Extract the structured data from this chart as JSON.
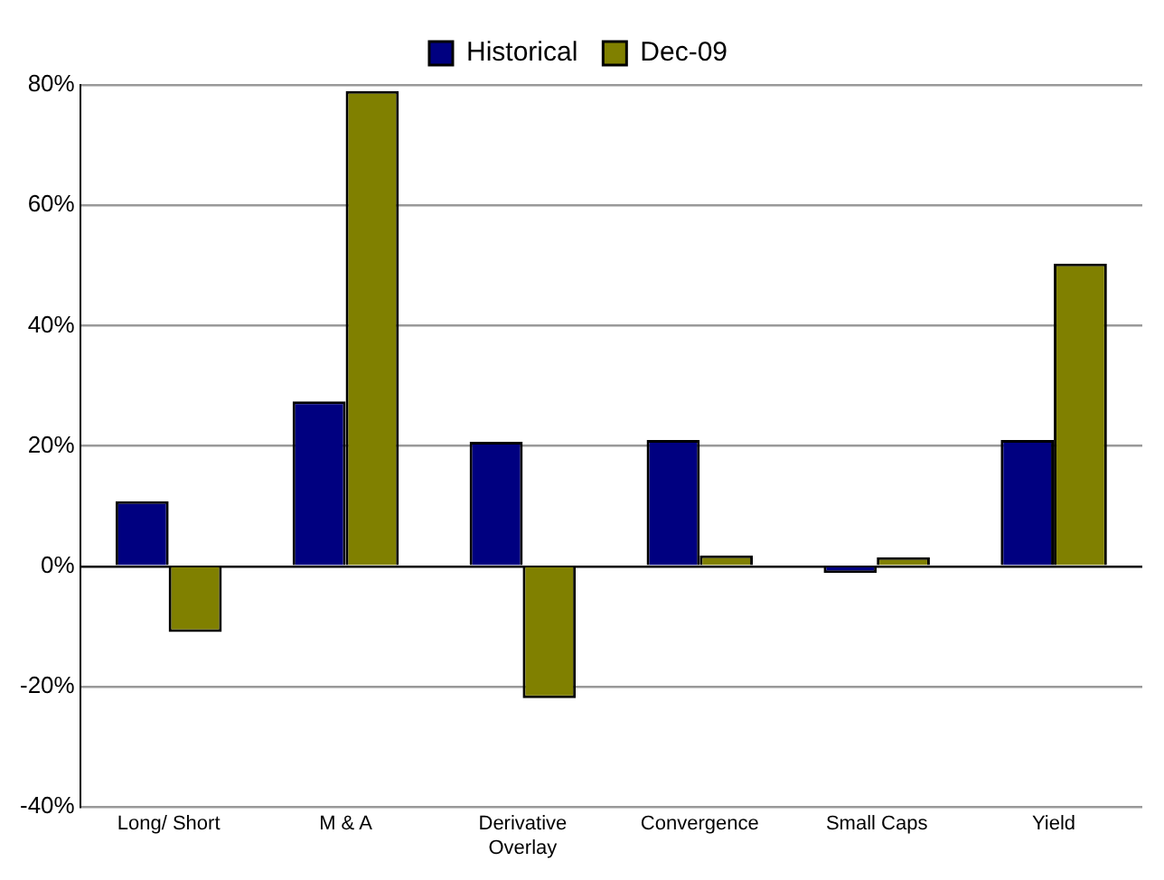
{
  "chart_data": {
    "type": "bar",
    "categories": [
      "Long/ Short",
      "M & A",
      "Derivative Overlay",
      "Convergence",
      "Small Caps",
      "Yield"
    ],
    "series": [
      {
        "name": "Historical",
        "color": "#000080",
        "values": [
          10.8,
          27.4,
          20.7,
          21,
          -1.1,
          21
        ]
      },
      {
        "name": "Dec-09",
        "color": "#808000",
        "values": [
          -10.9,
          79,
          -21.9,
          1.8,
          1.5,
          50.3
        ]
      }
    ],
    "ylim": [
      -40,
      80
    ],
    "yticks": [
      {
        "value": -40,
        "label": "-40%"
      },
      {
        "value": -20,
        "label": "-20%"
      },
      {
        "value": 0,
        "label": "0%"
      },
      {
        "value": 20,
        "label": "20%"
      },
      {
        "value": 40,
        "label": "40%"
      },
      {
        "value": 60,
        "label": "60%"
      },
      {
        "value": 80,
        "label": "80%"
      }
    ],
    "grid": "y",
    "legend": "top"
  }
}
